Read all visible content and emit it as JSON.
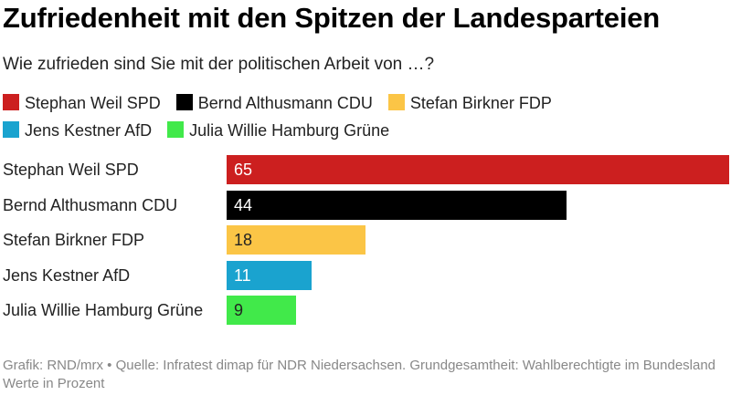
{
  "header": {
    "title": "Zufriedenheit mit den Spitzen der Landesparteien",
    "subtitle": "Wie zufrieden sind Sie mit der politischen Arbeit von …?"
  },
  "legend": {
    "items": [
      {
        "label": "Stephan Weil SPD",
        "color": "#cc1f1f"
      },
      {
        "label": "Bernd Althusmann CDU",
        "color": "#000000"
      },
      {
        "label": "Stefan Birkner FDP",
        "color": "#fbc546"
      },
      {
        "label": "Jens Kestner AfD",
        "color": "#1aa3cf"
      },
      {
        "label": "Julia Willie Hamburg Grüne",
        "color": "#41e94a"
      }
    ]
  },
  "chart_data": {
    "type": "bar",
    "orientation": "horizontal",
    "categories": [
      "Stephan Weil SPD",
      "Bernd Althusmann CDU",
      "Stefan Birkner FDP",
      "Jens Kestner AfD",
      "Julia Willie Hamburg Grüne"
    ],
    "values": [
      65,
      44,
      18,
      11,
      9
    ],
    "colors": [
      "#cc1f1f",
      "#000000",
      "#fbc546",
      "#1aa3cf",
      "#41e94a"
    ],
    "xlim": [
      0,
      65
    ],
    "grid": false,
    "legend_position": "top"
  },
  "footer": {
    "text": "Grafik: RND/mrx • Quelle: Infratest dimap für NDR Niedersachsen. Grundgesamtheit: Wahlberechtigte im Bundesland Werte in Prozent"
  }
}
